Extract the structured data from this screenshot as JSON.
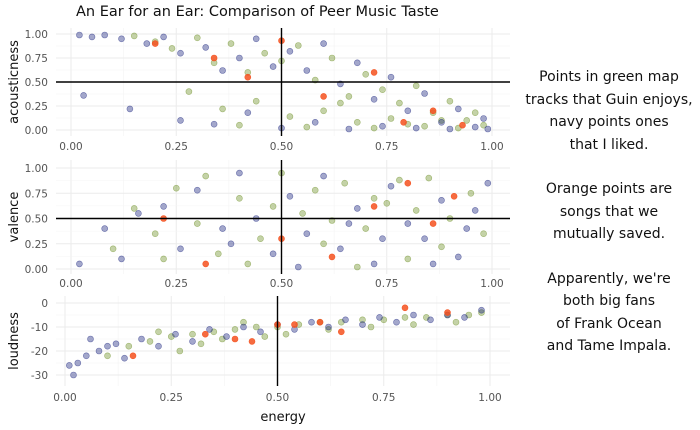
{
  "chart_data": [
    {
      "type": "scatter",
      "panel": "acousticness",
      "title": "An Ear for an Ear: Comparison of Peer Music Taste",
      "xlabel": "",
      "ylabel": "acousticness",
      "xlim": [
        0,
        1
      ],
      "ylim": [
        0,
        1
      ],
      "xticks": [
        "0.00",
        "0.25",
        "0.50",
        "0.75",
        "1.00"
      ],
      "yticks": [
        "0.00",
        "0.25",
        "0.50",
        "0.75",
        "1.00"
      ],
      "hline": 0.5,
      "vline": 0.5,
      "grid": true,
      "series": [
        {
          "color": "#6b8e23",
          "points": [
            [
              0.15,
              0.98
            ],
            [
              0.2,
              0.92
            ],
            [
              0.24,
              0.85
            ],
            [
              0.3,
              0.96
            ],
            [
              0.34,
              0.7
            ],
            [
              0.38,
              0.9
            ],
            [
              0.42,
              0.6
            ],
            [
              0.46,
              0.8
            ],
            [
              0.5,
              0.72
            ],
            [
              0.54,
              0.88
            ],
            [
              0.58,
              0.52
            ],
            [
              0.62,
              0.75
            ],
            [
              0.66,
              0.35
            ],
            [
              0.7,
              0.58
            ],
            [
              0.74,
              0.42
            ],
            [
              0.78,
              0.28
            ],
            [
              0.82,
              0.46
            ],
            [
              0.86,
              0.18
            ],
            [
              0.9,
              0.3
            ],
            [
              0.94,
              0.1
            ],
            [
              0.98,
              0.05
            ],
            [
              0.28,
              0.4
            ],
            [
              0.36,
              0.22
            ],
            [
              0.44,
              0.3
            ],
            [
              0.52,
              0.14
            ],
            [
              0.6,
              0.2
            ],
            [
              0.68,
              0.08
            ],
            [
              0.76,
              0.12
            ],
            [
              0.84,
              0.04
            ],
            [
              0.92,
              0.02
            ],
            [
              0.4,
              0.05
            ],
            [
              0.56,
              0.03
            ],
            [
              0.64,
              0.28
            ],
            [
              0.72,
              0.02
            ],
            [
              0.8,
              0.06
            ],
            [
              0.88,
              0.1
            ],
            [
              0.96,
              0.18
            ]
          ]
        },
        {
          "color": "#1a237e",
          "points": [
            [
              0.02,
              0.99
            ],
            [
              0.05,
              0.97
            ],
            [
              0.08,
              0.99
            ],
            [
              0.12,
              0.95
            ],
            [
              0.18,
              0.9
            ],
            [
              0.22,
              0.97
            ],
            [
              0.26,
              0.8
            ],
            [
              0.32,
              0.86
            ],
            [
              0.36,
              0.62
            ],
            [
              0.4,
              0.75
            ],
            [
              0.44,
              0.95
            ],
            [
              0.48,
              0.66
            ],
            [
              0.52,
              0.82
            ],
            [
              0.56,
              0.62
            ],
            [
              0.6,
              0.9
            ],
            [
              0.64,
              0.48
            ],
            [
              0.68,
              0.7
            ],
            [
              0.72,
              0.32
            ],
            [
              0.76,
              0.55
            ],
            [
              0.8,
              0.2
            ],
            [
              0.84,
              0.38
            ],
            [
              0.88,
              0.08
            ],
            [
              0.92,
              0.22
            ],
            [
              0.96,
              0.03
            ],
            [
              0.99,
              0.01
            ],
            [
              0.03,
              0.36
            ],
            [
              0.14,
              0.22
            ],
            [
              0.26,
              0.1
            ],
            [
              0.34,
              0.06
            ],
            [
              0.42,
              0.18
            ],
            [
              0.5,
              0.02
            ],
            [
              0.58,
              0.08
            ],
            [
              0.66,
              0.01
            ],
            [
              0.74,
              0.04
            ],
            [
              0.82,
              0.02
            ],
            [
              0.9,
              0.01
            ],
            [
              0.98,
              0.12
            ]
          ]
        },
        {
          "color": "#f4511e",
          "points": [
            [
              0.2,
              0.9
            ],
            [
              0.34,
              0.75
            ],
            [
              0.42,
              0.55
            ],
            [
              0.5,
              0.93
            ],
            [
              0.6,
              0.35
            ],
            [
              0.72,
              0.6
            ],
            [
              0.79,
              0.08
            ],
            [
              0.86,
              0.2
            ],
            [
              0.93,
              0.05
            ]
          ]
        }
      ]
    },
    {
      "type": "scatter",
      "panel": "valence",
      "xlabel": "",
      "ylabel": "valence",
      "xlim": [
        0,
        1
      ],
      "ylim": [
        0,
        1
      ],
      "xticks": [
        "0.00",
        "0.25",
        "0.50",
        "0.75",
        "1.00"
      ],
      "yticks": [
        "0.00",
        "0.25",
        "0.50",
        "0.75",
        "1.00"
      ],
      "hline": 0.5,
      "vline": 0.5,
      "grid": true,
      "series": [
        {
          "color": "#6b8e23",
          "points": [
            [
              0.1,
              0.2
            ],
            [
              0.15,
              0.6
            ],
            [
              0.2,
              0.35
            ],
            [
              0.25,
              0.8
            ],
            [
              0.3,
              0.45
            ],
            [
              0.35,
              0.15
            ],
            [
              0.4,
              0.7
            ],
            [
              0.45,
              0.3
            ],
            [
              0.5,
              0.95
            ],
            [
              0.55,
              0.55
            ],
            [
              0.6,
              0.25
            ],
            [
              0.65,
              0.85
            ],
            [
              0.7,
              0.4
            ],
            [
              0.75,
              0.65
            ],
            [
              0.8,
              0.1
            ],
            [
              0.85,
              0.9
            ],
            [
              0.9,
              0.5
            ],
            [
              0.95,
              0.75
            ],
            [
              0.98,
              0.35
            ],
            [
              0.32,
              0.92
            ],
            [
              0.42,
              0.05
            ],
            [
              0.58,
              0.78
            ],
            [
              0.68,
              0.02
            ],
            [
              0.78,
              0.88
            ],
            [
              0.88,
              0.22
            ],
            [
              0.22,
              0.1
            ],
            [
              0.48,
              0.62
            ],
            [
              0.62,
              0.48
            ],
            [
              0.72,
              0.7
            ],
            [
              0.82,
              0.58
            ]
          ]
        },
        {
          "color": "#1a237e",
          "points": [
            [
              0.02,
              0.05
            ],
            [
              0.08,
              0.4
            ],
            [
              0.12,
              0.1
            ],
            [
              0.16,
              0.55
            ],
            [
              0.22,
              0.62
            ],
            [
              0.26,
              0.2
            ],
            [
              0.3,
              0.78
            ],
            [
              0.36,
              0.4
            ],
            [
              0.4,
              0.95
            ],
            [
              0.44,
              0.5
            ],
            [
              0.48,
              0.15
            ],
            [
              0.52,
              0.72
            ],
            [
              0.56,
              0.35
            ],
            [
              0.6,
              0.92
            ],
            [
              0.64,
              0.2
            ],
            [
              0.68,
              0.6
            ],
            [
              0.72,
              0.05
            ],
            [
              0.76,
              0.82
            ],
            [
              0.8,
              0.45
            ],
            [
              0.84,
              0.3
            ],
            [
              0.88,
              0.68
            ],
            [
              0.92,
              0.12
            ],
            [
              0.96,
              0.58
            ],
            [
              0.99,
              0.85
            ],
            [
              0.38,
              0.25
            ],
            [
              0.54,
              0.02
            ],
            [
              0.66,
              0.45
            ],
            [
              0.74,
              0.3
            ],
            [
              0.86,
              0.05
            ],
            [
              0.94,
              0.4
            ]
          ]
        },
        {
          "color": "#f4511e",
          "points": [
            [
              0.22,
              0.5
            ],
            [
              0.32,
              0.05
            ],
            [
              0.5,
              0.3
            ],
            [
              0.62,
              0.12
            ],
            [
              0.72,
              0.62
            ],
            [
              0.8,
              0.85
            ],
            [
              0.86,
              0.45
            ],
            [
              0.91,
              0.72
            ]
          ]
        }
      ]
    },
    {
      "type": "scatter",
      "panel": "loudness",
      "xlabel": "energy",
      "ylabel": "loudness",
      "xlim": [
        0,
        1
      ],
      "ylim": [
        -33,
        2
      ],
      "xticks": [
        "0.00",
        "0.25",
        "0.50",
        "0.75",
        "1.00"
      ],
      "yticks": [
        "0",
        "-10",
        "-20",
        "-30"
      ],
      "vline": 0.5,
      "grid": true,
      "series": [
        {
          "color": "#6b8e23",
          "points": [
            [
              0.1,
              -22
            ],
            [
              0.15,
              -18
            ],
            [
              0.2,
              -16
            ],
            [
              0.25,
              -14
            ],
            [
              0.3,
              -13
            ],
            [
              0.35,
              -12
            ],
            [
              0.4,
              -11
            ],
            [
              0.45,
              -10
            ],
            [
              0.5,
              -10
            ],
            [
              0.55,
              -9
            ],
            [
              0.6,
              -8
            ],
            [
              0.65,
              -8
            ],
            [
              0.7,
              -7
            ],
            [
              0.75,
              -7
            ],
            [
              0.8,
              -6
            ],
            [
              0.85,
              -6
            ],
            [
              0.9,
              -5
            ],
            [
              0.95,
              -5
            ],
            [
              0.98,
              -4
            ],
            [
              0.22,
              -12
            ],
            [
              0.32,
              -17
            ],
            [
              0.42,
              -8
            ],
            [
              0.52,
              -13
            ],
            [
              0.62,
              -11
            ],
            [
              0.72,
              -10
            ],
            [
              0.82,
              -9
            ],
            [
              0.92,
              -8
            ],
            [
              0.27,
              -20
            ],
            [
              0.37,
              -15
            ],
            [
              0.47,
              -14
            ]
          ]
        },
        {
          "color": "#1a237e",
          "points": [
            [
              0.01,
              -26
            ],
            [
              0.02,
              -30
            ],
            [
              0.03,
              -25
            ],
            [
              0.05,
              -22
            ],
            [
              0.08,
              -20
            ],
            [
              0.1,
              -18
            ],
            [
              0.12,
              -17
            ],
            [
              0.14,
              -23
            ],
            [
              0.18,
              -15
            ],
            [
              0.22,
              -18
            ],
            [
              0.26,
              -13
            ],
            [
              0.3,
              -16
            ],
            [
              0.34,
              -11
            ],
            [
              0.38,
              -14
            ],
            [
              0.42,
              -10
            ],
            [
              0.46,
              -12
            ],
            [
              0.5,
              -9
            ],
            [
              0.54,
              -11
            ],
            [
              0.58,
              -8
            ],
            [
              0.62,
              -10
            ],
            [
              0.66,
              -7
            ],
            [
              0.7,
              -9
            ],
            [
              0.74,
              -6
            ],
            [
              0.78,
              -8
            ],
            [
              0.82,
              -5
            ],
            [
              0.86,
              -7
            ],
            [
              0.9,
              -5
            ],
            [
              0.94,
              -6
            ],
            [
              0.98,
              -3
            ],
            [
              0.06,
              -15
            ]
          ]
        },
        {
          "color": "#f4511e",
          "points": [
            [
              0.16,
              -22
            ],
            [
              0.33,
              -13
            ],
            [
              0.4,
              -15
            ],
            [
              0.44,
              -16
            ],
            [
              0.5,
              -9
            ],
            [
              0.54,
              -9
            ],
            [
              0.6,
              -8
            ],
            [
              0.65,
              -12
            ],
            [
              0.8,
              -2
            ],
            [
              0.9,
              -4
            ]
          ]
        }
      ]
    }
  ],
  "caption": {
    "paragraphs": [
      "Points in green map\ntracks that Guin enjoys,\nnavy points ones\nthat I liked.",
      "Orange points are\nsongs that we\nmutually saved.",
      "Apparently, we're\nboth big fans\nof Frank Ocean\nand Tame Impala."
    ]
  },
  "colors": {
    "green": "#6b8e23",
    "navy": "#1a237e",
    "orange": "#f4511e",
    "grid": "#ebebeb",
    "refline": "#000000"
  }
}
